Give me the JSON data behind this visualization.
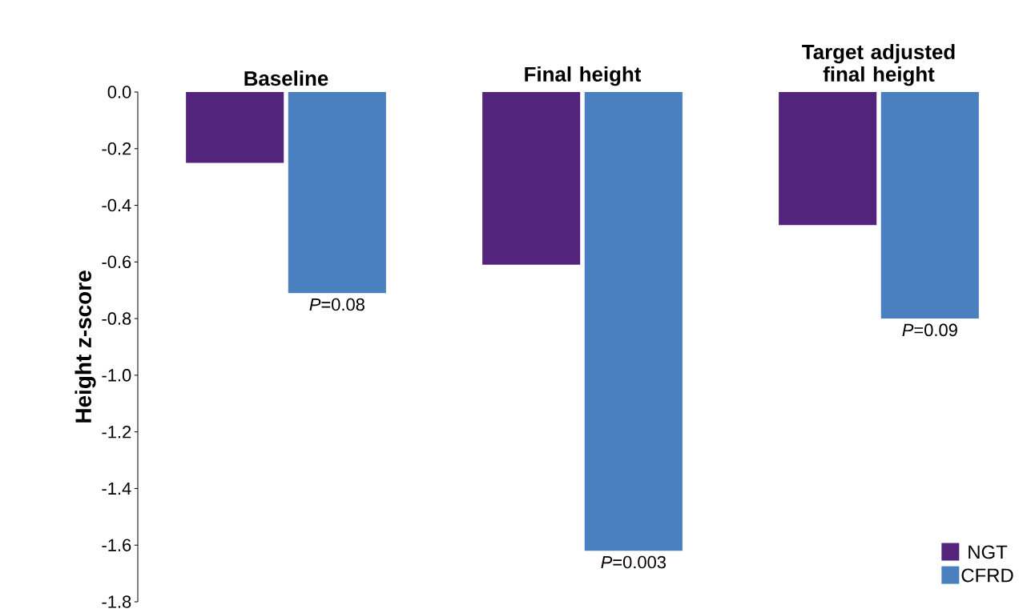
{
  "chart_data": {
    "type": "bar",
    "categories": [
      "Baseline",
      "Final height",
      "Target adjusted final height"
    ],
    "series": [
      {
        "name": "NGT",
        "color": "#54237b",
        "values": [
          -0.25,
          -0.61,
          -0.47
        ]
      },
      {
        "name": "CFRD",
        "color": "#4a80bf",
        "values": [
          -0.71,
          -1.62,
          -0.8
        ]
      }
    ],
    "ylabel": "Height z-score",
    "ylim": [
      -1.8,
      0
    ],
    "yticks": [
      {
        "value": 0,
        "label": "0.0"
      },
      {
        "value": -0.2,
        "label": "-0.2"
      },
      {
        "value": -0.4,
        "label": "-0.4"
      },
      {
        "value": -0.6,
        "label": "-0.6"
      },
      {
        "value": -0.8,
        "label": "-0.8"
      },
      {
        "value": -1.0,
        "label": "-1.0"
      },
      {
        "value": -1.2,
        "label": "-1.2"
      },
      {
        "value": -1.4,
        "label": "-1.4"
      },
      {
        "value": -1.6,
        "label": "-1.6"
      },
      {
        "value": -1.8,
        "label": "-1.8"
      }
    ],
    "legend": "bottom right",
    "annotations": [
      {
        "text": "*P*=0.08",
        "x": "Baseline",
        "y": -0.71
      },
      {
        "text": "*P*=0.003",
        "x": "Final height",
        "y": -1.62
      },
      {
        "text": "*P*=0.09",
        "x": "Target adjusted final height",
        "y": -0.8
      }
    ]
  }
}
